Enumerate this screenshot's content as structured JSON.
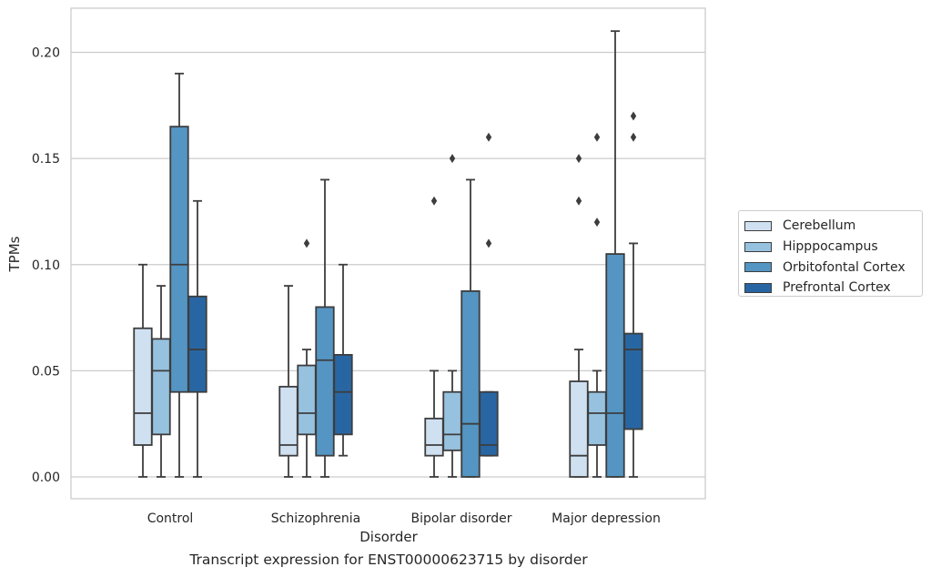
{
  "caption": "Transcript expression for ENST00000623715 by disorder",
  "chart_data": {
    "type": "box",
    "xlabel": "Disorder",
    "ylabel": "TPMs",
    "ylim": [
      -0.01,
      0.22
    ],
    "yticks": [
      0.0,
      0.05,
      0.1,
      0.15,
      0.2
    ],
    "ytick_labels": [
      "0.00",
      "0.05",
      "0.10",
      "0.15",
      "0.20"
    ],
    "grid": "horizontal",
    "legend_position": "right",
    "categories": [
      "Control",
      "Schizophrenia",
      "Bipolar disorder",
      "Major depression"
    ],
    "series": [
      {
        "name": "Cerebellum",
        "color": "#cfe0f1",
        "boxes": [
          {
            "whislo": 0.0,
            "q1": 0.015,
            "med": 0.03,
            "q3": 0.07,
            "whishi": 0.1,
            "fliers": []
          },
          {
            "whislo": 0.0,
            "q1": 0.01,
            "med": 0.015,
            "q3": 0.0425,
            "whishi": 0.09,
            "fliers": []
          },
          {
            "whislo": 0.0,
            "q1": 0.01,
            "med": 0.015,
            "q3": 0.0275,
            "whishi": 0.05,
            "fliers": [
              0.13
            ]
          },
          {
            "whislo": 0.0,
            "q1": 0.0,
            "med": 0.01,
            "q3": 0.045,
            "whishi": 0.06,
            "fliers": [
              0.13,
              0.15
            ]
          }
        ]
      },
      {
        "name": "Hipppocampus",
        "color": "#97c2df",
        "boxes": [
          {
            "whislo": 0.0,
            "q1": 0.02,
            "med": 0.05,
            "q3": 0.065,
            "whishi": 0.09,
            "fliers": []
          },
          {
            "whislo": 0.0,
            "q1": 0.02,
            "med": 0.03,
            "q3": 0.0525,
            "whishi": 0.06,
            "fliers": [
              0.11
            ]
          },
          {
            "whislo": 0.0,
            "q1": 0.0125,
            "med": 0.02,
            "q3": 0.04,
            "whishi": 0.05,
            "fliers": [
              0.15
            ]
          },
          {
            "whislo": 0.0,
            "q1": 0.015,
            "med": 0.03,
            "q3": 0.04,
            "whishi": 0.05,
            "fliers": [
              0.12,
              0.16
            ]
          }
        ]
      },
      {
        "name": "Orbitofontal Cortex",
        "color": "#5495c3",
        "boxes": [
          {
            "whislo": 0.0,
            "q1": 0.04,
            "med": 0.1,
            "q3": 0.165,
            "whishi": 0.19,
            "fliers": []
          },
          {
            "whislo": 0.0,
            "q1": 0.01,
            "med": 0.055,
            "q3": 0.08,
            "whishi": 0.14,
            "fliers": []
          },
          {
            "whislo": 0.0,
            "q1": 0.0,
            "med": 0.025,
            "q3": 0.0875,
            "whishi": 0.14,
            "fliers": []
          },
          {
            "whislo": 0.0,
            "q1": 0.0,
            "med": 0.03,
            "q3": 0.105,
            "whishi": 0.21,
            "fliers": []
          }
        ]
      },
      {
        "name": "Prefrontal Cortex",
        "color": "#2866a3",
        "boxes": [
          {
            "whislo": 0.0,
            "q1": 0.04,
            "med": 0.06,
            "q3": 0.085,
            "whishi": 0.13,
            "fliers": []
          },
          {
            "whislo": 0.01,
            "q1": 0.02,
            "med": 0.04,
            "q3": 0.0575,
            "whishi": 0.1,
            "fliers": []
          },
          {
            "whislo": 0.01,
            "q1": 0.01,
            "med": 0.015,
            "q3": 0.04,
            "whishi": 0.04,
            "fliers": [
              0.11,
              0.16
            ]
          },
          {
            "whislo": 0.0,
            "q1": 0.0225,
            "med": 0.06,
            "q3": 0.0675,
            "whishi": 0.11,
            "fliers": [
              0.16,
              0.17
            ]
          }
        ]
      }
    ]
  }
}
